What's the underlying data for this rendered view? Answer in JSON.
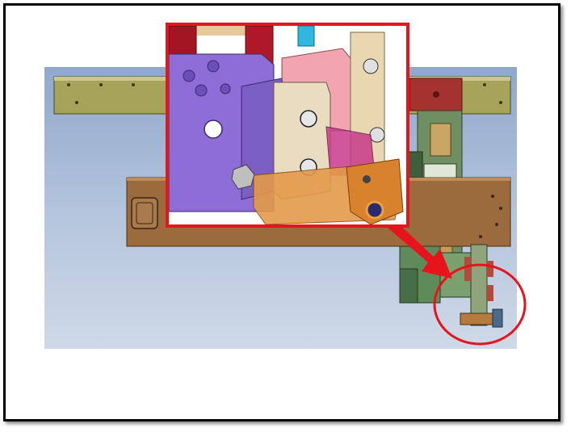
{
  "colors": {
    "highlight_red": "#e8141b",
    "rail_olive": "#a6a45a",
    "plate_brown": "#9a6a3c",
    "block_green": "#5f8a5a",
    "purple_plate": "#8d6ed6",
    "orange_part": "#e49a4a",
    "pink_block": "#f0a5b0",
    "tan_block": "#e9d7b2",
    "maroon_bar": "#b01828",
    "cyan_part": "#2fb7e0"
  },
  "annotations": {
    "zoom_inset": "red-framed-zoom",
    "callout_arrow": "red-arrow",
    "focus_circle": "red-ellipse"
  }
}
